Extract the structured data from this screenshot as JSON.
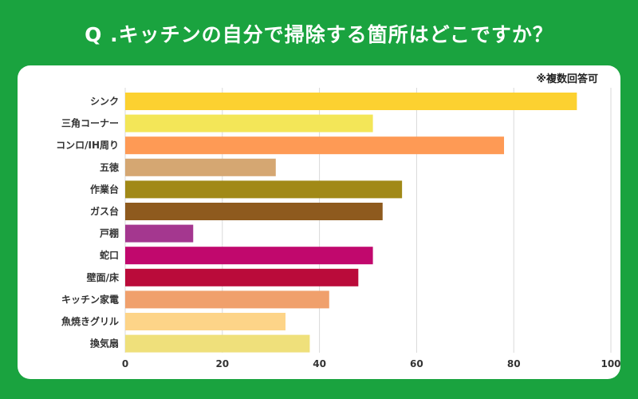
{
  "header": {
    "title": "Q .キッチンの自分で掃除する箇所はどこですか？"
  },
  "note": "※複数回答可",
  "colors": {
    "background": "#1aa33f",
    "panel": "#ffffff",
    "grid": "#d9d9d9"
  },
  "chart_data": {
    "type": "bar",
    "orientation": "horizontal",
    "title": "Q .キッチンの自分で掃除する箇所はどこですか？",
    "xlim": [
      0,
      100
    ],
    "xticks": [
      0,
      20,
      40,
      60,
      80,
      100
    ],
    "grid": true,
    "categories": [
      "シンク",
      "三角コーナー",
      "コンロ/IH周り",
      "五徳",
      "作業台",
      "ガス台",
      "戸棚",
      "蛇口",
      "壁面/床",
      "キッチン家電",
      "魚焼きグリル",
      "換気扇"
    ],
    "values": [
      93,
      51,
      78,
      31,
      57,
      53,
      14,
      51,
      48,
      42,
      33,
      38
    ],
    "bar_colors": [
      "#fcd130",
      "#f3e658",
      "#fe9a55",
      "#d5a772",
      "#a18917",
      "#8e5a1e",
      "#a4378f",
      "#c1086d",
      "#ba0b3a",
      "#f0a06c",
      "#fdd488",
      "#efe07b"
    ]
  }
}
